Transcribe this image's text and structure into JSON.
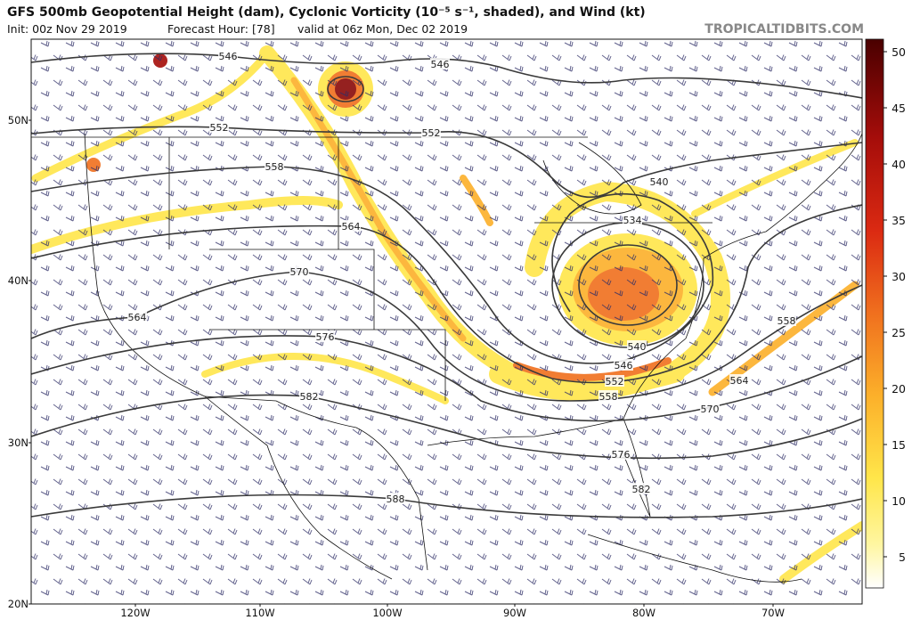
{
  "header": {
    "title": "GFS 500mb Geopotential Height (dam), Cyclonic Vorticity (10⁻⁵ s⁻¹, shaded), and Wind (kt)",
    "init": "Init: 00z Nov 29 2019",
    "forecast_hour": "Forecast Hour: [78]",
    "valid": "valid at 06z Mon, Dec 02 2019",
    "site": "TROPICALTIDBITS.COM"
  },
  "latitude_labels": [
    "50N",
    "40N",
    "30N",
    "20N"
  ],
  "longitude_labels": [
    "120W",
    "110W",
    "100W",
    "90W",
    "80W",
    "70W"
  ],
  "contour_labels": [
    546,
    546,
    552,
    552,
    558,
    564,
    564,
    570,
    576,
    582,
    588,
    540,
    534,
    540,
    546,
    552,
    558,
    570,
    576,
    582,
    564,
    558
  ],
  "colorbar_ticks": [
    5,
    10,
    15,
    20,
    25,
    30,
    35,
    40,
    45,
    50
  ]
}
